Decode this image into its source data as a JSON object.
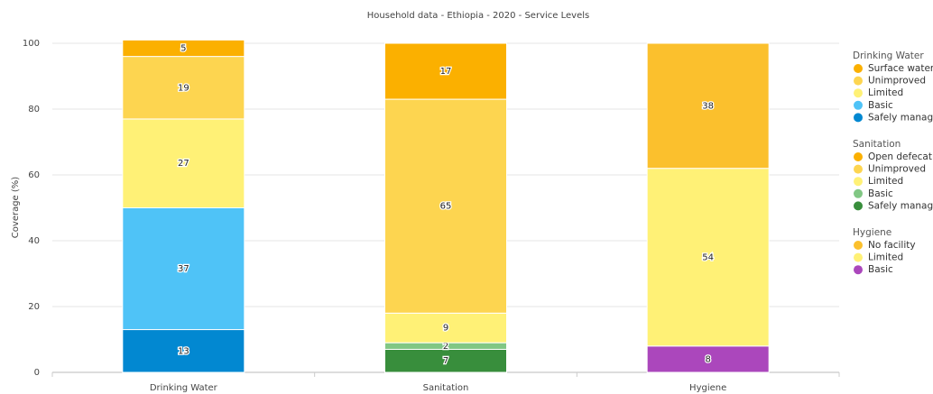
{
  "chart_data": {
    "type": "stacked-bar",
    "title": "Household data - Ethiopia - 2020 - Service Levels",
    "y_label": "Coverage (%)",
    "categories": [
      "Drinking Water",
      "Sanitation",
      "Hygiene"
    ],
    "ylim": [
      0,
      100
    ],
    "yticks": [
      0,
      20,
      40,
      60,
      80,
      100
    ],
    "grid": true,
    "series": [
      {
        "name": "Safely managed",
        "color": "#0288d1",
        "values": [
          13,
          null,
          null
        ]
      },
      {
        "name": "Basic",
        "color": "#4fc3f7",
        "values": [
          37,
          null,
          null
        ]
      },
      {
        "name": "Limited",
        "color": "#fff176",
        "values": [
          27,
          null,
          null
        ]
      },
      {
        "name": "Unimproved",
        "color": "#fdd550",
        "values": [
          19,
          null,
          null
        ]
      },
      {
        "name": "Surface water",
        "color": "#fbb000",
        "values": [
          5,
          null,
          null
        ]
      },
      {
        "name": "Safely managed",
        "color": "#388e3c",
        "values": [
          null,
          7,
          null
        ]
      },
      {
        "name": "Basic",
        "color": "#81c784",
        "values": [
          null,
          2,
          null
        ]
      },
      {
        "name": "Limited",
        "color": "#fff176",
        "values": [
          null,
          9,
          null
        ]
      },
      {
        "name": "Unimproved",
        "color": "#fdd550",
        "values": [
          null,
          65,
          null
        ]
      },
      {
        "name": "Open defecation",
        "color": "#fbb000",
        "values": [
          null,
          17,
          null
        ]
      },
      {
        "name": "Basic",
        "color": "#ab47bc",
        "values": [
          null,
          null,
          8
        ]
      },
      {
        "name": "Limited",
        "color": "#fff176",
        "values": [
          null,
          null,
          54
        ]
      },
      {
        "name": "No facility",
        "color": "#fbc02d",
        "values": [
          null,
          null,
          38
        ]
      }
    ]
  }
}
